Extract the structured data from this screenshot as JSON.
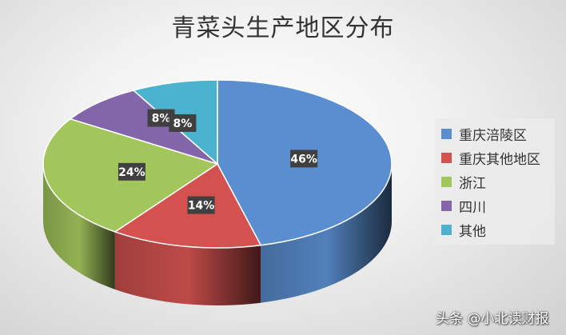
{
  "chart_data": {
    "type": "pie",
    "style": "3d",
    "title": "青菜头生产地区分布",
    "categories": [
      "重庆涪陵区",
      "重庆其他地区",
      "浙江",
      "四川",
      "其他"
    ],
    "values": [
      46,
      14,
      24,
      8,
      8
    ],
    "data_labels": [
      "46%",
      "14%",
      "24%",
      "8%",
      "8%"
    ],
    "colors": [
      "#5a8ed0",
      "#d3524f",
      "#a3c65c",
      "#8365aa",
      "#4bb3d0"
    ],
    "legend_position": "right"
  },
  "watermark": "头条 @小北读财报"
}
